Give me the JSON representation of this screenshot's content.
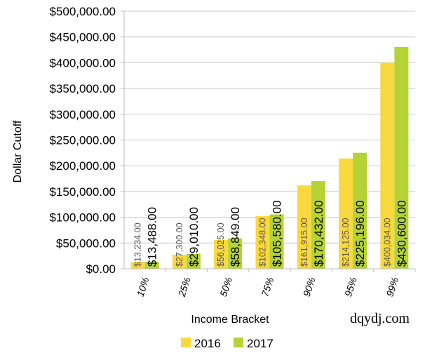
{
  "chart_data": {
    "type": "bar",
    "xlabel": "Income Bracket",
    "ylabel": "Dollar Cutoff",
    "ylim": [
      0,
      500000
    ],
    "yticks": [
      0,
      50000,
      100000,
      150000,
      200000,
      250000,
      300000,
      350000,
      400000,
      450000,
      500000
    ],
    "ytick_labels": [
      "$0.00",
      "$50,000.00",
      "$100,000.00",
      "$150,000.00",
      "$200,000.00",
      "$250,000.00",
      "$300,000.00",
      "$350,000.00",
      "$400,000.00",
      "$450,000.00",
      "$500,000.00"
    ],
    "categories": [
      "10%",
      "25%",
      "50%",
      "75%",
      "90%",
      "95%",
      "99%"
    ],
    "grid": true,
    "legend_position": "bottom",
    "series": [
      {
        "name": "2016",
        "color": "#f9d93d",
        "values": [
          13234,
          27300,
          56025,
          102348,
          161915,
          214125,
          400034
        ],
        "labels": [
          "$13,234.00",
          "$27,300.00",
          "$56,025.00",
          "$102,348.00",
          "$161,915.00",
          "$214,125.00",
          "$400,034.00"
        ]
      },
      {
        "name": "2017",
        "color": "#b5d334",
        "values": [
          13488,
          29010,
          58849,
          105580,
          170432,
          225196,
          430600
        ],
        "labels": [
          "$13,488.00",
          "$29,010.00",
          "$58,849.00",
          "$105,580.00",
          "$170,432.00",
          "$225,196.00",
          "$430,600.00"
        ]
      }
    ]
  },
  "watermark": "dqydj.com"
}
